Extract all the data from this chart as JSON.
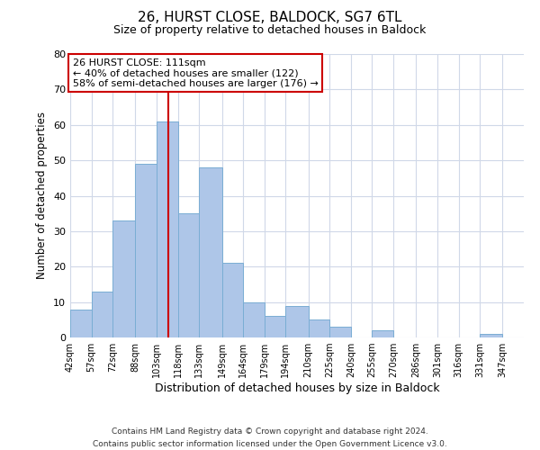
{
  "title": "26, HURST CLOSE, BALDOCK, SG7 6TL",
  "subtitle": "Size of property relative to detached houses in Baldock",
  "xlabel": "Distribution of detached houses by size in Baldock",
  "ylabel": "Number of detached properties",
  "bar_color": "#aec6e8",
  "bar_edge_color": "#7aadd4",
  "vline_color": "#cc0000",
  "vline_x": 111,
  "categories": [
    "42sqm",
    "57sqm",
    "72sqm",
    "88sqm",
    "103sqm",
    "118sqm",
    "133sqm",
    "149sqm",
    "164sqm",
    "179sqm",
    "194sqm",
    "210sqm",
    "225sqm",
    "240sqm",
    "255sqm",
    "270sqm",
    "286sqm",
    "301sqm",
    "316sqm",
    "331sqm",
    "347sqm"
  ],
  "bin_edges": [
    42,
    57,
    72,
    88,
    103,
    118,
    133,
    149,
    164,
    179,
    194,
    210,
    225,
    240,
    255,
    270,
    286,
    301,
    316,
    331,
    347,
    362
  ],
  "values": [
    8,
    13,
    33,
    49,
    61,
    35,
    48,
    21,
    10,
    6,
    9,
    5,
    3,
    0,
    2,
    0,
    0,
    0,
    0,
    1,
    0
  ],
  "ylim": [
    0,
    80
  ],
  "yticks": [
    0,
    10,
    20,
    30,
    40,
    50,
    60,
    70,
    80
  ],
  "annotation_title": "26 HURST CLOSE: 111sqm",
  "annotation_line1": "← 40% of detached houses are smaller (122)",
  "annotation_line2": "58% of semi-detached houses are larger (176) →",
  "annotation_box_color": "#ffffff",
  "annotation_border_color": "#cc0000",
  "footer1": "Contains HM Land Registry data © Crown copyright and database right 2024.",
  "footer2": "Contains public sector information licensed under the Open Government Licence v3.0.",
  "background_color": "#ffffff",
  "grid_color": "#d0d8e8"
}
